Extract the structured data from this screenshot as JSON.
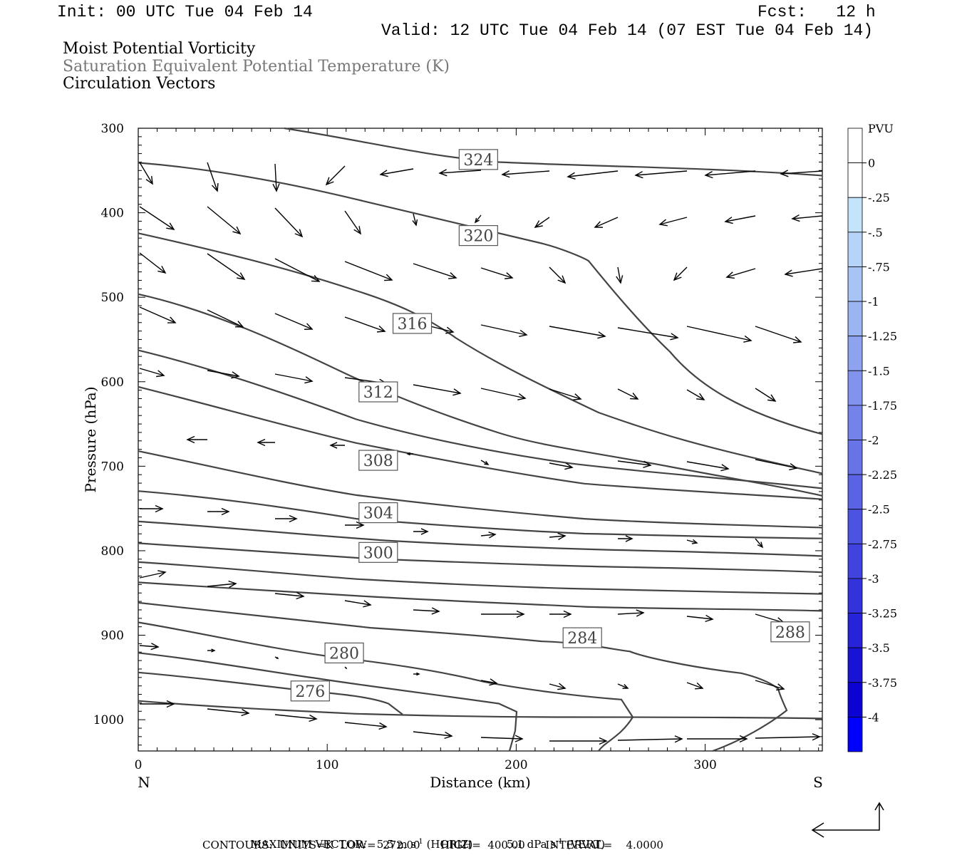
{
  "header": {
    "init": "Init: 00 UTC Tue 04 Feb 14",
    "fcst": "Fcst:   12 h",
    "valid": "Valid: 12 UTC Tue 04 Feb 14 (07 EST Tue 04 Feb 14)"
  },
  "titles": {
    "line1": "Moist Potential Vorticity",
    "line2": "Saturation Equivalent Potential Temperature (K)",
    "line3": "Circulation Vectors"
  },
  "chart_data": {
    "type": "cross-section",
    "xlabel": "Distance (km)",
    "ylabel": "Pressure (hPa)",
    "x_ticks": [
      "0",
      "100",
      "200",
      "300"
    ],
    "y_ticks": [
      "300",
      "400",
      "500",
      "600",
      "700",
      "800",
      "900",
      "1000"
    ],
    "xlim": [
      0,
      362
    ],
    "ylim": [
      300,
      1037
    ],
    "left_end_label": "N",
    "right_end_label": "S",
    "contour_labels": [
      {
        "value": "324",
        "x": 180,
        "p": 337
      },
      {
        "value": "320",
        "x": 180,
        "p": 427
      },
      {
        "value": "316",
        "x": 145,
        "p": 531
      },
      {
        "value": "312",
        "x": 127,
        "p": 612
      },
      {
        "value": "308",
        "x": 127,
        "p": 693
      },
      {
        "value": "304",
        "x": 127,
        "p": 755
      },
      {
        "value": "300",
        "x": 127,
        "p": 802
      },
      {
        "value": "284",
        "x": 235,
        "p": 903
      },
      {
        "value": "288",
        "x": 345,
        "p": 896
      },
      {
        "value": "280",
        "x": 109,
        "p": 921
      },
      {
        "value": "276",
        "x": 91,
        "p": 966
      }
    ],
    "colorbar": {
      "unit": "PVU",
      "labels": [
        "0",
        "-.25",
        "-.5",
        "-.75",
        "-1",
        "-1.25",
        "-1.5",
        "-1.75",
        "-2",
        "-2.25",
        "-2.5",
        "-2.75",
        "-3",
        "-3.25",
        "-3.5",
        "-3.75",
        "-4"
      ],
      "colors": [
        "#ffffff",
        "#ffffff",
        "#c3e4fb",
        "#b5d4f8",
        "#a8c4f5",
        "#9bb4f2",
        "#8ea3ef",
        "#8193ec",
        "#7483ea",
        "#6773e7",
        "#5a63e4",
        "#4d53e1",
        "#4043de",
        "#3333db",
        "#2623d8",
        "#1913d5",
        "#0c03d2",
        "#0000ff"
      ]
    },
    "contour_color": "#444444"
  },
  "footer": {
    "max_vector_label": "MAXIMUM VECTOR:",
    "horiz_value": "5.5",
    "horiz_unit": "m s",
    "horiz_exp": "-1",
    "horiz_tag": "(HORIZ)",
    "vert_value": "5.1",
    "vert_unit": "dPa s",
    "vert_exp": "-1",
    "vert_tag": "(VERT)",
    "contours_line": "CONTOURS:  UNITS=K  LOW=  272.00      HIGH=  400.00      INTERVAL=    4.0000"
  }
}
